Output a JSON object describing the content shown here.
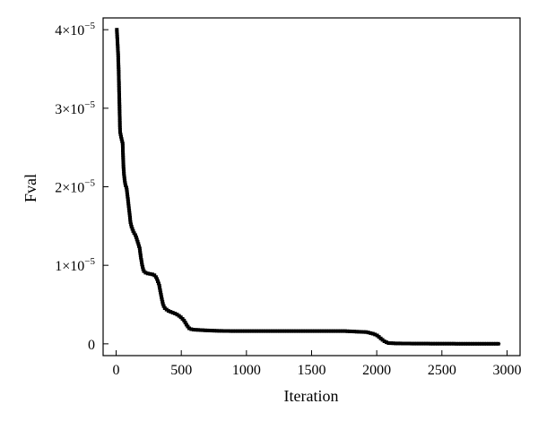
{
  "chart_data": {
    "type": "line",
    "title": "",
    "xlabel": "Iteration",
    "ylabel": "Fval",
    "xlim": [
      -100,
      3100
    ],
    "ylim": [
      -1.5e-06,
      4.15e-05
    ],
    "x_ticks": [
      0,
      500,
      1000,
      1500,
      2000,
      2500,
      3000
    ],
    "x_tick_labels": [
      "0",
      "500",
      "1000",
      "1500",
      "2000",
      "2500",
      "3000"
    ],
    "y_ticks": [
      0,
      1e-05,
      2e-05,
      3e-05,
      4e-05
    ],
    "y_tick_labels": [
      {
        "mant": "0",
        "exp": ""
      },
      {
        "mant": "1×10",
        "exp": "−5"
      },
      {
        "mant": "2×10",
        "exp": "−5"
      },
      {
        "mant": "3×10",
        "exp": "−5"
      },
      {
        "mant": "4×10",
        "exp": "−5"
      }
    ],
    "grid": false,
    "marker": "square",
    "series": [
      {
        "name": "",
        "color": "#000000",
        "points": [
          [
            5,
            4e-05
          ],
          [
            15,
            3.7e-05
          ],
          [
            20,
            3.45e-05
          ],
          [
            25,
            3.05e-05
          ],
          [
            30,
            2.7e-05
          ],
          [
            40,
            2.62e-05
          ],
          [
            50,
            2.55e-05
          ],
          [
            55,
            2.3e-05
          ],
          [
            60,
            2.15e-05
          ],
          [
            70,
            2.03e-05
          ],
          [
            80,
            1.98e-05
          ],
          [
            90,
            1.85e-05
          ],
          [
            100,
            1.7e-05
          ],
          [
            110,
            1.55e-05
          ],
          [
            120,
            1.48e-05
          ],
          [
            135,
            1.42e-05
          ],
          [
            150,
            1.38e-05
          ],
          [
            165,
            1.3e-05
          ],
          [
            180,
            1.22e-05
          ],
          [
            190,
            1.1e-05
          ],
          [
            200,
            1e-05
          ],
          [
            210,
            9.3e-06
          ],
          [
            230,
            9e-06
          ],
          [
            260,
            8.9e-06
          ],
          [
            290,
            8.8e-06
          ],
          [
            310,
            8.4e-06
          ],
          [
            330,
            7.5e-06
          ],
          [
            345,
            6.2e-06
          ],
          [
            360,
            5e-06
          ],
          [
            375,
            4.5e-06
          ],
          [
            400,
            4.2e-06
          ],
          [
            430,
            4e-06
          ],
          [
            460,
            3.8e-06
          ],
          [
            490,
            3.5e-06
          ],
          [
            520,
            3e-06
          ],
          [
            545,
            2.3e-06
          ],
          [
            565,
            1.9e-06
          ],
          [
            600,
            1.8e-06
          ],
          [
            650,
            1.75e-06
          ],
          [
            700,
            1.7e-06
          ],
          [
            800,
            1.65e-06
          ],
          [
            900,
            1.62e-06
          ],
          [
            1000,
            1.62e-06
          ],
          [
            1200,
            1.62e-06
          ],
          [
            1400,
            1.62e-06
          ],
          [
            1600,
            1.62e-06
          ],
          [
            1750,
            1.62e-06
          ],
          [
            1850,
            1.55e-06
          ],
          [
            1920,
            1.5e-06
          ],
          [
            1970,
            1.3e-06
          ],
          [
            2000,
            1.1e-06
          ],
          [
            2030,
            7e-07
          ],
          [
            2060,
            3e-07
          ],
          [
            2090,
            1e-07
          ],
          [
            2150,
            5e-08
          ],
          [
            2300,
            3e-08
          ],
          [
            2500,
            2e-08
          ],
          [
            2700,
            1e-08
          ],
          [
            2950,
            1e-08
          ]
        ]
      }
    ]
  }
}
